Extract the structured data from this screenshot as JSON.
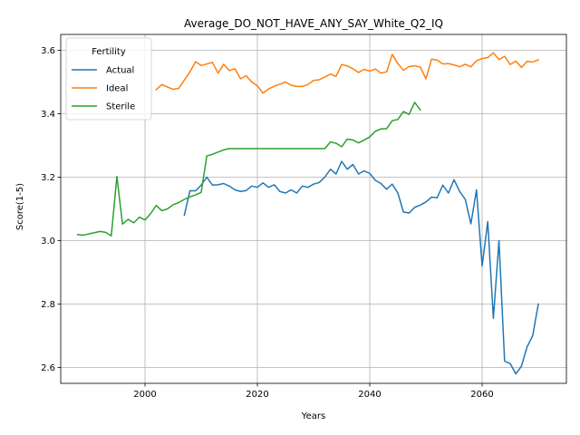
{
  "chart_data": {
    "type": "line",
    "title": "Average_DO_NOT_HAVE_ANY_SAY_White_Q2_IQ",
    "xlabel": "Years",
    "ylabel": "Score(1-5)",
    "xlim": [
      1985,
      2075
    ],
    "ylim": [
      2.55,
      3.65
    ],
    "xticks": [
      2000,
      2020,
      2040,
      2060
    ],
    "yticks": [
      2.6,
      2.8,
      3.0,
      3.2,
      3.4,
      3.6
    ],
    "ytick_labels": [
      "2.6",
      "2.8",
      "3.0",
      "3.2",
      "3.4",
      "3.6"
    ],
    "grid": true,
    "legend": {
      "title": "Fertility",
      "placement": "upper-left"
    },
    "series": [
      {
        "name": "Actual",
        "color": "#1f77b4",
        "x": [
          2007,
          2008,
          2009,
          2010,
          2011,
          2012,
          2013,
          2014,
          2015,
          2016,
          2017,
          2018,
          2019,
          2020,
          2021,
          2022,
          2023,
          2024,
          2025,
          2026,
          2027,
          2028,
          2029,
          2030,
          2031,
          2032,
          2033,
          2034,
          2035,
          2036,
          2037,
          2038,
          2039,
          2040,
          2041,
          2042,
          2043,
          2044,
          2045,
          2046,
          2047,
          2048,
          2049,
          2050,
          2051,
          2052,
          2053,
          2054,
          2055,
          2056,
          2057,
          2058,
          2059,
          2060,
          2061,
          2062,
          2063,
          2064,
          2065,
          2066,
          2067,
          2068,
          2069,
          2070
        ],
        "y": [
          3.08,
          3.157,
          3.157,
          3.175,
          3.2,
          3.175,
          3.176,
          3.18,
          3.172,
          3.16,
          3.155,
          3.158,
          3.172,
          3.168,
          3.182,
          3.168,
          3.176,
          3.155,
          3.15,
          3.16,
          3.15,
          3.172,
          3.168,
          3.178,
          3.183,
          3.2,
          3.225,
          3.21,
          3.25,
          3.225,
          3.24,
          3.21,
          3.22,
          3.212,
          3.19,
          3.18,
          3.162,
          3.178,
          3.15,
          3.09,
          3.087,
          3.105,
          3.112,
          3.122,
          3.137,
          3.135,
          3.175,
          3.15,
          3.192,
          3.155,
          3.13,
          3.053,
          3.16,
          2.92,
          3.06,
          2.755,
          3.0,
          2.62,
          2.612,
          2.58,
          2.604,
          2.665,
          2.7,
          2.8
        ]
      },
      {
        "name": "Ideal",
        "color": "#ff7f0e",
        "x": [
          2002,
          2003,
          2004,
          2005,
          2006,
          2007,
          2008,
          2009,
          2010,
          2011,
          2012,
          2013,
          2014,
          2015,
          2016,
          2017,
          2018,
          2019,
          2020,
          2021,
          2022,
          2023,
          2024,
          2025,
          2026,
          2027,
          2028,
          2029,
          2030,
          2031,
          2032,
          2033,
          2034,
          2035,
          2036,
          2037,
          2038,
          2039,
          2040,
          2041,
          2042,
          2043,
          2044,
          2045,
          2046,
          2047,
          2048,
          2049,
          2050,
          2051,
          2052,
          2053,
          2054,
          2055,
          2056,
          2057,
          2058,
          2059,
          2060,
          2061,
          2062,
          2063,
          2064,
          2065,
          2066,
          2067,
          2068,
          2069,
          2070
        ],
        "y": [
          3.476,
          3.492,
          3.484,
          3.477,
          3.48,
          3.506,
          3.532,
          3.564,
          3.552,
          3.557,
          3.562,
          3.528,
          3.556,
          3.536,
          3.542,
          3.51,
          3.52,
          3.5,
          3.488,
          3.465,
          3.478,
          3.487,
          3.493,
          3.5,
          3.49,
          3.486,
          3.486,
          3.492,
          3.505,
          3.507,
          3.516,
          3.525,
          3.518,
          3.555,
          3.551,
          3.542,
          3.53,
          3.54,
          3.534,
          3.541,
          3.528,
          3.532,
          3.587,
          3.558,
          3.537,
          3.549,
          3.551,
          3.547,
          3.51,
          3.572,
          3.569,
          3.557,
          3.558,
          3.554,
          3.548,
          3.556,
          3.548,
          3.567,
          3.574,
          3.577,
          3.592,
          3.571,
          3.581,
          3.555,
          3.566,
          3.546,
          3.565,
          3.563,
          3.57
        ]
      },
      {
        "name": "Sterile",
        "color": "#2ca02c",
        "x": [
          1988,
          1989,
          1990,
          1991,
          1992,
          1993,
          1994,
          1995,
          1996,
          1997,
          1998,
          1999,
          2000,
          2001,
          2002,
          2003,
          2004,
          2005,
          2006,
          2007,
          2008,
          2009,
          2010,
          2011,
          2012,
          2013,
          2014,
          2015,
          2016,
          2017,
          2018,
          2019,
          2020,
          2021,
          2022,
          2023,
          2024,
          2025,
          2026,
          2027,
          2028,
          2029,
          2030,
          2031,
          2032,
          2033,
          2034,
          2035,
          2036,
          2037,
          2038,
          2039,
          2040,
          2041,
          2042,
          2043,
          2044,
          2045,
          2046,
          2047,
          2048,
          2049
        ],
        "y": [
          3.019,
          3.017,
          3.021,
          3.025,
          3.029,
          3.026,
          3.015,
          3.202,
          3.052,
          3.067,
          3.056,
          3.074,
          3.065,
          3.085,
          3.111,
          3.094,
          3.1,
          3.113,
          3.12,
          3.13,
          3.138,
          3.144,
          3.152,
          3.267,
          3.272,
          3.279,
          3.286,
          3.29,
          3.29,
          3.29,
          3.29,
          3.29,
          3.29,
          3.29,
          3.29,
          3.29,
          3.29,
          3.29,
          3.29,
          3.29,
          3.29,
          3.29,
          3.29,
          3.29,
          3.29,
          3.311,
          3.307,
          3.296,
          3.32,
          3.317,
          3.308,
          3.317,
          3.327,
          3.345,
          3.352,
          3.353,
          3.378,
          3.382,
          3.407,
          3.398,
          3.436,
          3.412
        ]
      }
    ]
  }
}
